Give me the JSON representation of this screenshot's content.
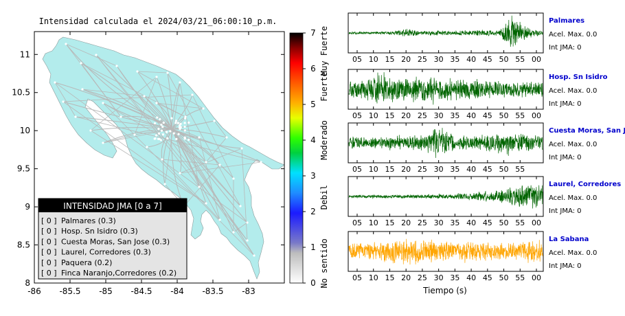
{
  "map": {
    "title": "Intensidad calculada el 2024/03/21_06:00:10_p.m.",
    "x_ticks": [
      "-86",
      "-85.5",
      "-85",
      "-84.5",
      "-84",
      "-83.5",
      "-83"
    ],
    "y_ticks": [
      "11",
      "10.5",
      "10",
      "9.5",
      "9",
      "8.5",
      "8"
    ],
    "xlim": [
      -86,
      -82.5
    ],
    "ylim": [
      8,
      11.3
    ],
    "land_color": "#b3ecec",
    "road_color": "#b8b8b8"
  },
  "legend": {
    "title": "INTENSIDAD JMA [0 a 7]",
    "items": [
      {
        "code": "[ 0 ]",
        "label": "Palmares (0.3)"
      },
      {
        "code": "[ 0 ]",
        "label": "Hosp. Sn Isidro (0.3)"
      },
      {
        "code": "[ 0 ]",
        "label": "Cuesta Moras, San Jose (0.3)"
      },
      {
        "code": "[ 0 ]",
        "label": "Laurel, Corredores (0.3)"
      },
      {
        "code": "[ 0 ]",
        "label": "Paquera (0.2)"
      },
      {
        "code": "[ 0 ]",
        "label": "Finca Naranjo,Corredores (0.2)"
      }
    ]
  },
  "colorbar": {
    "ticks": [
      "0",
      "1",
      "2",
      "3",
      "4",
      "5",
      "6",
      "7"
    ],
    "categories": [
      "No sentido",
      "Debil",
      "Moderado",
      "Fuerte",
      "Muy Fuerte"
    ],
    "range": [
      0,
      7
    ]
  },
  "chart_data": [
    {
      "type": "line",
      "title": "",
      "xlabel": "Tiempo (s)",
      "ylabel": "",
      "series": [
        {
          "name": "Palmares",
          "accel_label": "Acel. Max. 0.0",
          "int_label": "Int JMA: 0",
          "color": "#006400",
          "x_ticks": [
            "05",
            "10",
            "15",
            "20",
            "25",
            "30",
            "35",
            "40",
            "45",
            "50",
            "55",
            "00"
          ],
          "amplitude_envelope": [
            0.08,
            0.08,
            0.08,
            0.12,
            0.25,
            0.1,
            0.15,
            0.12,
            0.15,
            0.2,
            0.15,
            1.0,
            0.3,
            0.15
          ]
        },
        {
          "name": "Hosp. Sn Isidro",
          "accel_label": "Acel. Max. 0.0",
          "int_label": "Int JMA: 0",
          "color": "#006400",
          "x_ticks": [
            "05",
            "10",
            "15",
            "20",
            "25",
            "30",
            "35",
            "40",
            "45",
            "50",
            "55",
            "00"
          ],
          "amplitude_envelope": [
            0.5,
            0.6,
            0.9,
            0.7,
            0.75,
            0.8,
            0.7,
            0.65,
            0.6,
            0.65,
            0.55,
            0.5,
            0.5,
            0.5
          ]
        },
        {
          "name": "Cuesta Moras, San Jose",
          "accel_label": "Acel. Max. 0.0",
          "int_label": "Int JMA: 0",
          "color": "#006400",
          "x_ticks": [
            "05",
            "10",
            "15",
            "20",
            "25",
            "30",
            "35",
            "40",
            "45",
            "50",
            "55"
          ],
          "amplitude_envelope": [
            0.4,
            0.35,
            0.35,
            0.4,
            0.45,
            0.5,
            1.0,
            0.5,
            0.45,
            0.5,
            0.55,
            0.6,
            0.5,
            0.45
          ]
        },
        {
          "name": "Laurel, Corredores",
          "accel_label": "Acel. Max. 0.0",
          "int_label": "Int JMA: 0",
          "color": "#006400",
          "x_ticks": [
            "05",
            "10",
            "15",
            "20",
            "25",
            "30",
            "35",
            "40",
            "45",
            "50",
            "55",
            "00"
          ],
          "amplitude_envelope": [
            0.1,
            0.1,
            0.1,
            0.1,
            0.12,
            0.12,
            0.15,
            0.15,
            0.2,
            0.3,
            0.4,
            0.6,
            0.85,
            0.9
          ]
        },
        {
          "name": "La Sabana",
          "accel_label": "Acel. Max. 0.0",
          "int_label": "Int JMA: 0",
          "color": "#ffa500",
          "x_ticks": [
            "05",
            "10",
            "15",
            "20",
            "25",
            "30",
            "35",
            "40",
            "45",
            "50",
            "55",
            "00"
          ],
          "amplitude_envelope": [
            0.5,
            0.5,
            0.55,
            0.7,
            0.9,
            0.75,
            0.6,
            0.55,
            0.6,
            0.55,
            0.55,
            0.5,
            0.6,
            0.6
          ]
        }
      ]
    }
  ]
}
